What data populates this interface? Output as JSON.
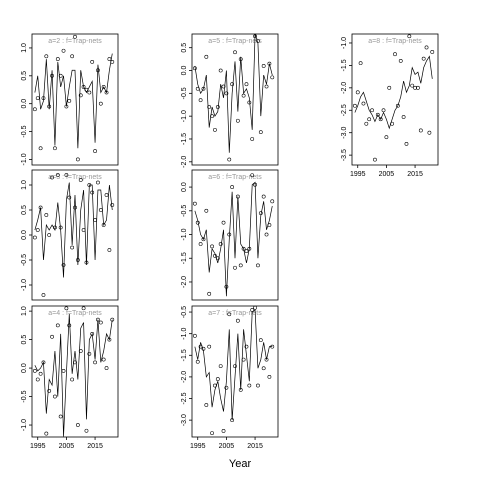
{
  "xlabel": "Year",
  "chart_data": [
    {
      "type": "scatter-line",
      "title": "a=2 : f=Trap-nets",
      "xlim": [
        1993,
        2023
      ],
      "ylim": [
        -1.1,
        1.25
      ],
      "yticks": [
        {
          "value": -1,
          "label": "-1.0"
        },
        -0.5,
        {
          "value": 0,
          "label": "0.0"
        },
        0.5,
        {
          "value": 1,
          "label": "1.0"
        }
      ],
      "x": [
        1994,
        1995,
        1996,
        1997,
        1998,
        1999,
        2000,
        2001,
        2002,
        2003,
        2004,
        2005,
        2006,
        2007,
        2008,
        2009,
        2010,
        2011,
        2012,
        2013,
        2014,
        2015,
        2016,
        2017,
        2018,
        2019,
        2020,
        2021
      ],
      "series": [
        {
          "style": "points",
          "color": "#000000",
          "values": [
            -0.1,
            0.1,
            -0.8,
            0.1,
            0.85,
            -0.05,
            0.5,
            -0.8,
            0.8,
            0.5,
            0.95,
            -0.05,
            0.05,
            0.85,
            1.2,
            -1.0,
            0.15,
            0.3,
            0.25,
            0.2,
            0.75,
            -0.85,
            0.6,
            0.0,
            0.3,
            0.2,
            0.8,
            0.75
          ]
        },
        {
          "style": "line",
          "color": "#000000",
          "values": [
            0.2,
            0.5,
            -0.1,
            0.05,
            0.8,
            -0.1,
            0.6,
            -0.75,
            0.75,
            0.3,
            0.5,
            -0.05,
            0.3,
            0.6,
            0.6,
            -0.8,
            0.6,
            0.3,
            0.2,
            0.3,
            0.4,
            -0.7,
            0.7,
            0.2,
            0.3,
            0.2,
            0.6,
            0.9
          ]
        }
      ]
    },
    {
      "type": "scatter-line",
      "title": "a=5 : f=Trap-nets",
      "xlim": [
        1993,
        2023
      ],
      "ylim": [
        -2.07,
        0.8
      ],
      "yticks": [
        {
          "value": -2,
          "label": "-2.0"
        },
        -1.5,
        {
          "value": -1,
          "label": "-1.0"
        },
        -0.5,
        {
          "value": 0,
          "label": "0.0"
        },
        0.5
      ],
      "x": [
        1994,
        1995,
        1996,
        1997,
        1998,
        1999,
        2000,
        2001,
        2002,
        2003,
        2004,
        2005,
        2006,
        2007,
        2008,
        2009,
        2010,
        2011,
        2012,
        2013,
        2014,
        2015,
        2016,
        2017,
        2018,
        2019,
        2020,
        2021
      ],
      "series": [
        {
          "style": "points",
          "color": "#000000",
          "values": [
            0.05,
            -0.4,
            -0.65,
            -0.4,
            0.3,
            -0.8,
            -1.0,
            -1.3,
            -0.8,
            0.0,
            -0.35,
            -0.5,
            -1.95,
            -0.3,
            0.4,
            -1.1,
            0.25,
            -0.55,
            -0.3,
            -0.7,
            -1.5,
            0.75,
            0.65,
            -1.35,
            0.1,
            -0.35,
            0.15,
            -0.15
          ]
        },
        {
          "style": "line",
          "color": "#000000",
          "values": [
            0.1,
            -0.3,
            -0.5,
            -0.4,
            -0.1,
            -1.25,
            -0.8,
            -1.0,
            -0.9,
            -0.3,
            -0.6,
            0.0,
            -1.8,
            -0.5,
            0.2,
            -0.9,
            0.3,
            -0.5,
            -0.4,
            -0.6,
            -1.3,
            0.8,
            0.6,
            -1.0,
            -0.1,
            -0.3,
            0.15,
            -0.1
          ]
        }
      ]
    },
    {
      "type": "scatter-line",
      "title": "a=8 : f=Trap-nets",
      "xlim": [
        1993,
        2023
      ],
      "ylim": [
        -3.72,
        -0.8
      ],
      "xticks": [
        1995,
        2005,
        2015
      ],
      "yticks": [
        -3.5,
        {
          "value": -3,
          "label": "-3.0"
        },
        -2.5,
        {
          "value": -2,
          "label": "-2.0"
        },
        -1.5,
        {
          "value": -1,
          "label": "-1.0"
        }
      ],
      "x": [
        1994,
        1995,
        1996,
        1997,
        1998,
        1999,
        2000,
        2001,
        2002,
        2003,
        2004,
        2005,
        2006,
        2007,
        2008,
        2009,
        2010,
        2011,
        2012,
        2013,
        2014,
        2015,
        2016,
        2017,
        2018,
        2019,
        2020,
        2021
      ],
      "series": [
        {
          "style": "points",
          "color": "#000000",
          "values": [
            -2.4,
            -2.1,
            -1.45,
            -2.35,
            -2.8,
            -2.7,
            -2.5,
            -3.6,
            -2.6,
            -2.7,
            -2.5,
            -3.1,
            -2.0,
            -2.8,
            -1.25,
            -2.4,
            -1.4,
            -2.65,
            -3.25,
            -0.85,
            -1.95,
            -2.0,
            -2.0,
            -2.95,
            -1.35,
            -1.1,
            -3.0,
            -1.2
          ]
        },
        {
          "style": "line",
          "color": "#000000",
          "values": [
            -2.55,
            -2.4,
            -2.2,
            -2.1,
            -2.3,
            -2.5,
            -2.6,
            -2.75,
            -2.6,
            -2.7,
            -2.55,
            -2.7,
            -2.9,
            -2.7,
            -2.5,
            -2.4,
            -2.2,
            -1.85,
            -2.1,
            -1.95,
            -1.55,
            -1.7,
            -1.65,
            -1.9,
            -1.55,
            -1.4,
            -1.3,
            -1.8
          ]
        }
      ]
    },
    {
      "type": "scatter-line",
      "title": "a=3 : f=Trap-nets",
      "xlim": [
        1993,
        2023
      ],
      "ylim": [
        -1.3,
        1.3
      ],
      "yticks": [
        {
          "value": -1,
          "label": "-1.0"
        },
        -0.5,
        {
          "value": 0,
          "label": "0.0"
        },
        0.5,
        {
          "value": 1,
          "label": "1.0"
        }
      ],
      "x": [
        1994,
        1995,
        1996,
        1997,
        1998,
        1999,
        2000,
        2001,
        2002,
        2003,
        2004,
        2005,
        2006,
        2007,
        2008,
        2009,
        2010,
        2011,
        2012,
        2013,
        2014,
        2015,
        2016,
        2017,
        2018,
        2019,
        2020,
        2021
      ],
      "series": [
        {
          "style": "points",
          "color": "#000000",
          "values": [
            -0.05,
            0.1,
            0.55,
            -1.2,
            0.4,
            0.0,
            1.15,
            0.15,
            1.2,
            0.15,
            -0.6,
            1.2,
            0.75,
            -0.25,
            0.55,
            -0.5,
            1.1,
            0.1,
            -0.55,
            1.0,
            0.85,
            0.3,
            1.05,
            0.5,
            0.2,
            0.8,
            -0.3,
            0.6
          ]
        },
        {
          "style": "line",
          "color": "#000000",
          "values": [
            0.1,
            0.3,
            0.55,
            -0.5,
            0.2,
            0.1,
            0.2,
            0.1,
            0.65,
            0.1,
            -0.85,
            0.7,
            1.05,
            -0.2,
            0.8,
            -0.6,
            0.5,
            0.9,
            -0.6,
            1.0,
            1.0,
            -0.5,
            0.9,
            0.9,
            0.2,
            0.3,
            1.0,
            0.5
          ]
        }
      ]
    },
    {
      "type": "scatter-line",
      "title": "a=6 : f=Trap-nets",
      "xlim": [
        1993,
        2023
      ],
      "ylim": [
        -2.38,
        0.36
      ],
      "yticks": [
        {
          "value": -2,
          "label": "-2.0"
        },
        -1.5,
        {
          "value": -1,
          "label": "-1.0"
        },
        -0.5,
        {
          "value": 0,
          "label": "0.0"
        }
      ],
      "x": [
        1994,
        1995,
        1996,
        1997,
        1998,
        1999,
        2000,
        2001,
        2002,
        2003,
        2004,
        2005,
        2006,
        2007,
        2008,
        2009,
        2010,
        2011,
        2012,
        2013,
        2014,
        2015,
        2016,
        2017,
        2018,
        2019,
        2020,
        2021
      ],
      "series": [
        {
          "style": "points",
          "color": "#000000",
          "values": [
            -0.35,
            -0.75,
            -1.2,
            -1.1,
            -0.5,
            -2.25,
            -1.25,
            -1.45,
            -1.5,
            -1.2,
            -0.75,
            -2.1,
            -1.0,
            0.0,
            -1.7,
            -0.2,
            -1.65,
            -1.3,
            -1.35,
            -1.3,
            0.25,
            0.05,
            -1.65,
            -0.55,
            -0.2,
            -1.0,
            -0.8,
            -0.3
          ]
        },
        {
          "style": "line",
          "color": "#000000",
          "values": [
            -0.5,
            -0.7,
            -1.0,
            -1.1,
            -0.9,
            -1.8,
            -1.3,
            -1.4,
            -1.6,
            -1.3,
            -0.9,
            -2.3,
            -1.1,
            -0.1,
            -1.5,
            -0.2,
            -1.2,
            -1.3,
            -1.6,
            -1.3,
            0.05,
            0.1,
            -1.5,
            -0.6,
            -0.3,
            -0.9,
            -0.7,
            -0.4
          ]
        }
      ]
    },
    {
      "type": "scatter-line",
      "title": "a=4 : f=Trap-nets",
      "xlim": [
        1993,
        2023
      ],
      "ylim": [
        -1.21,
        1.09
      ],
      "xticks": [
        1995,
        2005,
        2015
      ],
      "yticks": [
        {
          "value": -1,
          "label": "-1.0"
        },
        -0.5,
        {
          "value": 0,
          "label": "0.0"
        },
        0.5,
        {
          "value": 1,
          "label": "1.0"
        }
      ],
      "x": [
        1994,
        1995,
        1996,
        1997,
        1998,
        1999,
        2000,
        2001,
        2002,
        2003,
        2004,
        2005,
        2006,
        2007,
        2008,
        2009,
        2010,
        2011,
        2012,
        2013,
        2014,
        2015,
        2016,
        2017,
        2018,
        2019,
        2020,
        2021
      ],
      "series": [
        {
          "style": "points",
          "color": "#000000",
          "values": [
            -0.05,
            -0.2,
            -0.1,
            0.1,
            -1.15,
            -0.4,
            0.55,
            -0.5,
            0.75,
            -0.85,
            -0.05,
            1.05,
            0.75,
            -0.2,
            0.1,
            -1.0,
            0.3,
            1.05,
            -1.1,
            0.25,
            0.6,
            0.1,
            0.85,
            0.8,
            0.15,
            0.0,
            0.5,
            0.85
          ]
        },
        {
          "style": "line",
          "color": "#000000",
          "values": [
            0.05,
            -0.05,
            0.0,
            0.1,
            -0.8,
            -0.2,
            -0.3,
            0.3,
            -0.5,
            0.6,
            -1.2,
            -0.1,
            0.95,
            -0.1,
            0.3,
            -0.2,
            0.7,
            0.8,
            -0.9,
            0.5,
            0.6,
            0.15,
            0.85,
            0.1,
            0.3,
            0.6,
            0.5,
            0.85
          ]
        }
      ]
    },
    {
      "type": "scatter-line",
      "title": "a=7 : f=Trap-nets",
      "xlim": [
        1993,
        2023
      ],
      "ylim": [
        -3.39,
        -0.36
      ],
      "xticks": [
        1995,
        2005,
        2015
      ],
      "yticks": [
        {
          "value": -3,
          "label": "-3.0"
        },
        -2.5,
        {
          "value": -2,
          "label": "-2.0"
        },
        -1.5,
        {
          "value": -1,
          "label": "-1.0"
        },
        -0.5
      ],
      "x": [
        1994,
        1995,
        1996,
        1997,
        1998,
        1999,
        2000,
        2001,
        2002,
        2003,
        2004,
        2005,
        2006,
        2007,
        2008,
        2009,
        2010,
        2011,
        2012,
        2013,
        2014,
        2015,
        2016,
        2017,
        2018,
        2019,
        2020,
        2021
      ],
      "series": [
        {
          "style": "points",
          "color": "#000000",
          "values": [
            -1.05,
            -1.65,
            -1.3,
            -1.35,
            -2.65,
            -1.3,
            -3.3,
            -2.2,
            -2.05,
            -1.75,
            -3.25,
            -2.25,
            -0.55,
            -3.0,
            -1.75,
            -0.7,
            -2.3,
            -1.6,
            -1.3,
            -2.2,
            -0.45,
            -0.4,
            -2.2,
            -1.15,
            -1.8,
            -1.6,
            -2.0,
            -1.3
          ]
        },
        {
          "style": "line",
          "color": "#000000",
          "values": [
            -1.3,
            -1.6,
            -1.2,
            -1.4,
            -2.0,
            -1.9,
            -2.7,
            -2.3,
            -2.1,
            -2.5,
            -2.8,
            -2.1,
            -0.9,
            -3.0,
            -2.0,
            -1.0,
            -2.3,
            -0.9,
            -1.5,
            -2.1,
            -0.5,
            -0.45,
            -1.8,
            -1.6,
            -1.2,
            -1.6,
            -1.3,
            -1.3
          ]
        }
      ]
    }
  ]
}
